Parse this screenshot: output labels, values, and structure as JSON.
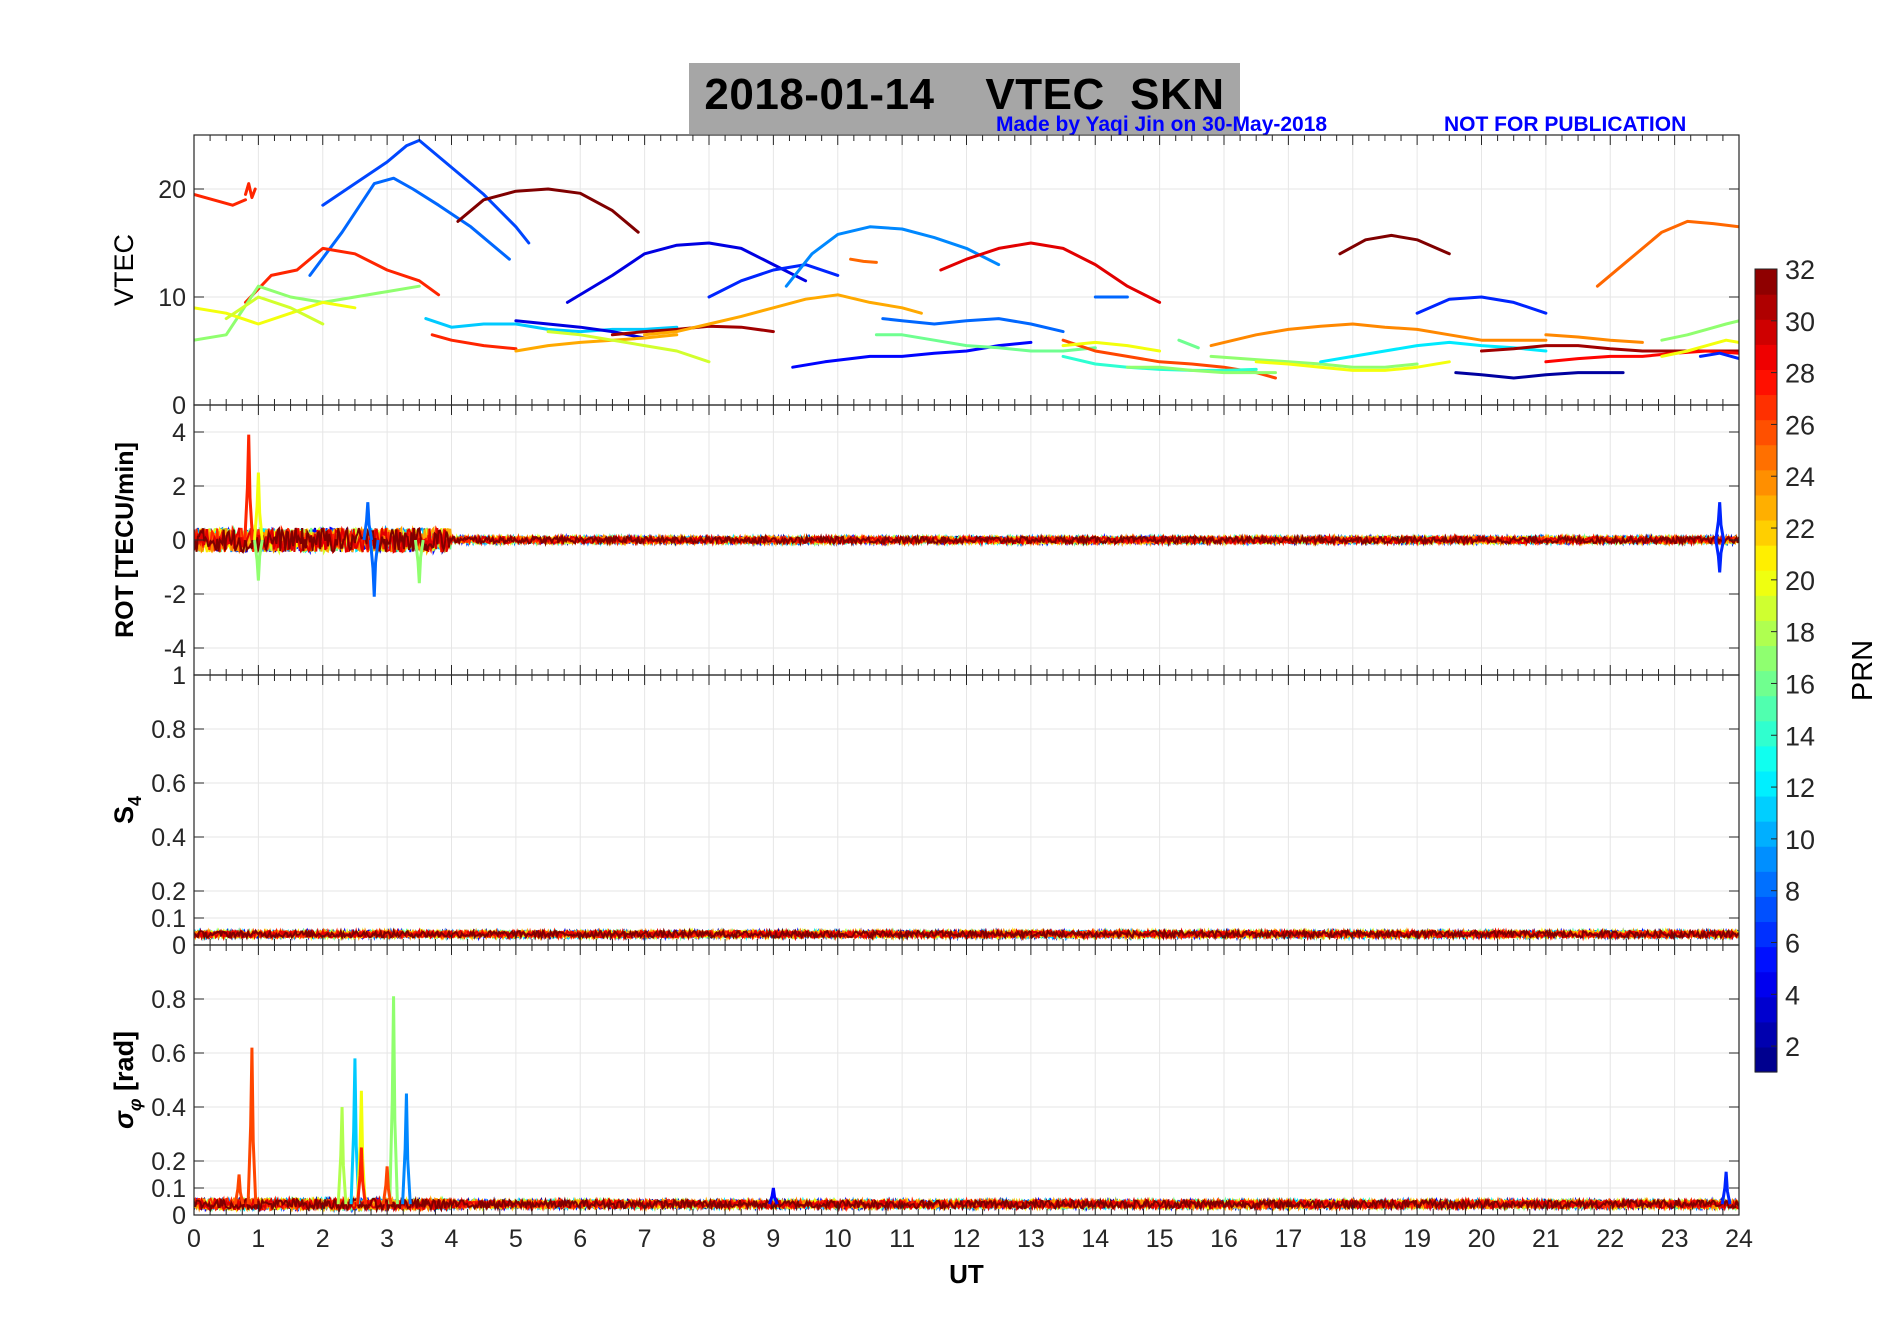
{
  "title": "2018-01-14    VTEC  SKN",
  "credit": {
    "made_by": "Made by Yaqi Jin on 30-May-2018",
    "note": "NOT FOR PUBLICATION"
  },
  "colorbar": {
    "label": "PRN",
    "range": [
      1,
      32
    ],
    "ticks": [
      2,
      4,
      6,
      8,
      10,
      12,
      14,
      16,
      18,
      20,
      22,
      24,
      26,
      28,
      30,
      32
    ],
    "colormap": "jet"
  },
  "chart_data": [
    {
      "type": "line",
      "panel": "vtec",
      "ylabel": "VTEC",
      "xlim": [
        0,
        24
      ],
      "ylim": [
        0,
        25
      ],
      "yticks": [
        0,
        10,
        20
      ],
      "grid": true,
      "series": [
        {
          "prn": 27,
          "x": [
            0,
            0.3,
            0.6,
            0.8
          ],
          "y": [
            19.5,
            19,
            18.5,
            19
          ]
        },
        {
          "prn": 27,
          "x": [
            0.8,
            0.85,
            0.9,
            0.95
          ],
          "y": [
            19.5,
            20.5,
            19.2,
            20
          ]
        },
        {
          "prn": 7,
          "x": [
            2.0,
            2.5,
            3.0,
            3.3,
            3.5,
            4.0,
            4.5,
            5.0,
            5.2
          ],
          "y": [
            18.5,
            20.5,
            22.5,
            24,
            24.5,
            22,
            19.5,
            16.5,
            15
          ]
        },
        {
          "prn": 8,
          "x": [
            1.8,
            2.3,
            2.8,
            3.1,
            3.4,
            3.8,
            4.3,
            4.9
          ],
          "y": [
            12,
            16,
            20.5,
            21,
            20,
            18.5,
            16.5,
            13.5
          ]
        },
        {
          "prn": 32,
          "x": [
            4.1,
            4.5,
            5.0,
            5.5,
            6.0,
            6.5,
            6.9
          ],
          "y": [
            17,
            19,
            19.8,
            20,
            19.6,
            18,
            16
          ]
        },
        {
          "prn": 27,
          "x": [
            0.8,
            1.2,
            1.6,
            2.0,
            2.5,
            3.0,
            3.5,
            3.8
          ],
          "y": [
            9.5,
            12,
            12.5,
            14.5,
            14,
            12.5,
            11.5,
            10.2
          ]
        },
        {
          "prn": 17,
          "x": [
            0,
            0.5,
            1.0,
            1.5,
            2.0,
            2.5,
            3.0,
            3.5
          ],
          "y": [
            6,
            6.5,
            11,
            10,
            9.5,
            10,
            10.5,
            11
          ]
        },
        {
          "prn": 20,
          "x": [
            0,
            0.5,
            1.0,
            1.5,
            2.0,
            2.5
          ],
          "y": [
            9,
            8.5,
            7.5,
            8.5,
            9.5,
            9
          ]
        },
        {
          "prn": 19,
          "x": [
            0.5,
            1.0,
            1.5,
            2.0
          ],
          "y": [
            8,
            10,
            9,
            7.5
          ]
        },
        {
          "prn": 27,
          "x": [
            3.7,
            4.0,
            4.5,
            5.0
          ],
          "y": [
            6.5,
            6,
            5.5,
            5.2
          ]
        },
        {
          "prn": 11,
          "x": [
            3.6,
            4.0,
            4.5,
            5.0,
            5.5,
            6.0,
            6.5,
            7.0,
            7.5
          ],
          "y": [
            8,
            7.2,
            7.5,
            7.5,
            7,
            6.8,
            7,
            7,
            7.2
          ]
        },
        {
          "prn": 4,
          "x": [
            5.0,
            5.5,
            6.0,
            6.5,
            7.0
          ],
          "y": [
            7.8,
            7.5,
            7.2,
            6.8,
            6.2
          ]
        },
        {
          "prn": 23,
          "x": [
            5.0,
            5.5,
            6.0,
            6.5,
            7.0,
            7.5
          ],
          "y": [
            5,
            5.5,
            5.8,
            6,
            6.2,
            6.5
          ]
        },
        {
          "prn": 19,
          "x": [
            5.5,
            6.0,
            6.5,
            7.0,
            7.5,
            8.0
          ],
          "y": [
            6.8,
            6.5,
            6,
            5.5,
            5,
            4
          ]
        },
        {
          "prn": 31,
          "x": [
            6.5,
            7.0,
            7.5,
            8.0,
            8.5,
            9.0
          ],
          "y": [
            6.5,
            6.8,
            7,
            7.3,
            7.2,
            6.8
          ]
        },
        {
          "prn": 4,
          "x": [
            5.8,
            6.5,
            7.0,
            7.5,
            8.0,
            8.5,
            9.0,
            9.5
          ],
          "y": [
            9.5,
            12,
            14,
            14.8,
            15,
            14.5,
            13,
            11.5
          ]
        },
        {
          "prn": 6,
          "x": [
            8.0,
            8.5,
            9.0,
            9.5,
            10.0
          ],
          "y": [
            10,
            11.5,
            12.5,
            13,
            12
          ]
        },
        {
          "prn": 9,
          "x": [
            9.2,
            9.6,
            10.0,
            10.5,
            11.0,
            11.5,
            12.0,
            12.5
          ],
          "y": [
            11,
            14,
            15.8,
            16.5,
            16.3,
            15.5,
            14.5,
            13
          ]
        },
        {
          "prn": 25,
          "x": [
            10.2,
            10.4,
            10.6
          ],
          "y": [
            13.5,
            13.3,
            13.2
          ]
        },
        {
          "prn": 29,
          "x": [
            11.6,
            12.0,
            12.5,
            13.0,
            13.5,
            14.0,
            14.5,
            15.0
          ],
          "y": [
            12.5,
            13.5,
            14.5,
            15,
            14.5,
            13,
            11,
            9.5
          ]
        },
        {
          "prn": 23,
          "x": [
            7.0,
            7.5,
            8.0,
            8.5,
            9.0,
            9.5,
            10.0,
            10.5,
            11.0,
            11.3
          ],
          "y": [
            6.5,
            6.8,
            7.5,
            8.2,
            9,
            9.8,
            10.2,
            9.5,
            9,
            8.5
          ]
        },
        {
          "prn": 8,
          "x": [
            10.7,
            11.0,
            11.5,
            12.0,
            12.5,
            13.0,
            13.5
          ],
          "y": [
            8,
            7.8,
            7.5,
            7.8,
            8,
            7.5,
            6.8
          ]
        },
        {
          "prn": 5,
          "x": [
            9.3,
            9.8,
            10.5,
            11.0,
            11.5,
            12.0,
            12.5,
            13.0
          ],
          "y": [
            3.5,
            4,
            4.5,
            4.5,
            4.8,
            5,
            5.5,
            5.8
          ]
        },
        {
          "prn": 16,
          "x": [
            10.6,
            11.0,
            11.5,
            12.0,
            12.5,
            13.0,
            13.5,
            14.0
          ],
          "y": [
            6.5,
            6.5,
            6,
            5.5,
            5.3,
            5,
            5,
            5.3
          ]
        },
        {
          "prn": 8,
          "x": [
            14.0,
            14.3,
            14.5
          ],
          "y": [
            10,
            10,
            10
          ]
        },
        {
          "prn": 26,
          "x": [
            13.5,
            14.0,
            14.5,
            15.0,
            15.5,
            16.0,
            16.5,
            16.8
          ],
          "y": [
            6,
            5,
            4.5,
            4,
            3.8,
            3.5,
            3,
            2.5
          ]
        },
        {
          "prn": 20,
          "x": [
            13.5,
            14.0,
            14.5,
            15.0
          ],
          "y": [
            5.5,
            5.8,
            5.5,
            5
          ]
        },
        {
          "prn": 14,
          "x": [
            13.5,
            14.0,
            14.5,
            15.0,
            15.5,
            16.0,
            16.5
          ],
          "y": [
            4.5,
            3.8,
            3.5,
            3.3,
            3.2,
            3.2,
            3.3
          ]
        },
        {
          "prn": 17,
          "x": [
            14.5,
            15.0,
            15.5,
            16.0,
            16.5,
            16.8
          ],
          "y": [
            3.5,
            3.5,
            3.2,
            3,
            3,
            3
          ]
        },
        {
          "prn": 16,
          "x": [
            15.3,
            15.6
          ],
          "y": [
            6,
            5.3
          ]
        },
        {
          "prn": 24,
          "x": [
            15.8,
            16.5,
            17.0,
            17.5,
            18.0,
            18.5,
            19.0,
            19.5,
            20.0,
            20.5,
            21.0
          ],
          "y": [
            5.5,
            6.5,
            7,
            7.3,
            7.5,
            7.2,
            7,
            6.5,
            6,
            6,
            6
          ]
        },
        {
          "prn": 17,
          "x": [
            15.8,
            16.5,
            17.0,
            17.5,
            18.0,
            18.5,
            19.0
          ],
          "y": [
            4.5,
            4.2,
            4,
            3.8,
            3.5,
            3.5,
            3.8
          ]
        },
        {
          "prn": 20,
          "x": [
            16.5,
            17.0,
            17.5,
            18.0,
            18.5,
            19.0,
            19.5
          ],
          "y": [
            4,
            3.8,
            3.5,
            3.2,
            3.2,
            3.5,
            4
          ]
        },
        {
          "prn": 12,
          "x": [
            17.5,
            18.0,
            18.5,
            19.0,
            19.5,
            20.0,
            20.5,
            21.0
          ],
          "y": [
            4,
            4.5,
            5,
            5.5,
            5.8,
            5.5,
            5.3,
            5
          ]
        },
        {
          "prn": 32,
          "x": [
            17.8,
            18.2,
            18.6,
            19.0,
            19.5
          ],
          "y": [
            14,
            15.3,
            15.7,
            15.3,
            14
          ]
        },
        {
          "prn": 6,
          "x": [
            19.0,
            19.5,
            20.0,
            20.5,
            21.0
          ],
          "y": [
            8.5,
            9.8,
            10,
            9.5,
            8.5
          ]
        },
        {
          "prn": 2,
          "x": [
            19.6,
            20.0,
            20.5,
            21.0,
            21.5,
            22.0,
            22.2
          ],
          "y": [
            3,
            2.8,
            2.5,
            2.8,
            3,
            3,
            3
          ]
        },
        {
          "prn": 31,
          "x": [
            20.0,
            20.5,
            21.0,
            21.5,
            22.0,
            22.5,
            23.0,
            23.5,
            24.0
          ],
          "y": [
            5,
            5.2,
            5.5,
            5.5,
            5.2,
            5,
            5,
            5,
            5
          ]
        },
        {
          "prn": 28,
          "x": [
            21.0,
            21.5,
            22.0,
            22.5,
            23.0,
            23.5,
            24.0
          ],
          "y": [
            4,
            4.3,
            4.5,
            4.5,
            4.8,
            5,
            4.8
          ]
        },
        {
          "prn": 24,
          "x": [
            21.0,
            21.5,
            22.0,
            22.5
          ],
          "y": [
            6.5,
            6.3,
            6,
            5.8
          ]
        },
        {
          "prn": 25,
          "x": [
            21.8,
            22.3,
            22.8,
            23.2,
            23.6,
            24.0
          ],
          "y": [
            11,
            13.5,
            16,
            17,
            16.8,
            16.5
          ]
        },
        {
          "prn": 17,
          "x": [
            22.8,
            23.2,
            23.5,
            23.8,
            24.0
          ],
          "y": [
            6,
            6.5,
            7,
            7.5,
            7.8
          ]
        },
        {
          "prn": 20,
          "x": [
            22.8,
            23.2,
            23.5,
            23.8,
            24.0
          ],
          "y": [
            4.5,
            5,
            5.5,
            6,
            5.8
          ]
        },
        {
          "prn": 6,
          "x": [
            23.4,
            23.7,
            24.0
          ],
          "y": [
            4.5,
            4.8,
            4.3
          ]
        }
      ]
    },
    {
      "type": "line",
      "panel": "rot",
      "ylabel": "ROT [TECU/min]",
      "xlim": [
        0,
        24
      ],
      "ylim": [
        -5,
        5
      ],
      "yticks": [
        -4,
        -2,
        0,
        2,
        4
      ],
      "grid": true,
      "peaks": [
        {
          "prn": 27,
          "x": 0.85,
          "y": 3.9
        },
        {
          "prn": 20,
          "x": 1.0,
          "y": 2.5
        },
        {
          "prn": 17,
          "x": 1.0,
          "y": -1.5
        },
        {
          "prn": 8,
          "x": 2.8,
          "y": -2.1
        },
        {
          "prn": 8,
          "x": 2.7,
          "y": 1.4
        },
        {
          "prn": 17,
          "x": 3.5,
          "y": -1.6
        },
        {
          "prn": 6,
          "x": 23.7,
          "y": 1.4
        },
        {
          "prn": 6,
          "x": 23.7,
          "y": -1.2
        }
      ]
    },
    {
      "type": "line",
      "panel": "s4",
      "ylabel": "S4",
      "xlim": [
        0,
        24
      ],
      "ylim": [
        0,
        1
      ],
      "yticks": [
        0,
        0.1,
        0.2,
        0.4,
        0.6,
        0.8,
        1
      ],
      "grid": true,
      "baseline": 0.04
    },
    {
      "type": "line",
      "panel": "sigma_phi",
      "ylabel": "σφ [rad]",
      "xlabel": "UT",
      "xlim": [
        0,
        24
      ],
      "ylim": [
        0,
        1
      ],
      "xticks": [
        0,
        1,
        2,
        3,
        4,
        5,
        6,
        7,
        8,
        9,
        10,
        11,
        12,
        13,
        14,
        15,
        16,
        17,
        18,
        19,
        20,
        21,
        22,
        23,
        24
      ],
      "yticks": [
        0,
        0.1,
        0.2,
        0.4,
        0.6,
        0.8
      ],
      "grid": true,
      "peaks": [
        {
          "prn": 26,
          "x": 0.9,
          "y": 0.62
        },
        {
          "prn": 26,
          "x": 0.7,
          "y": 0.15
        },
        {
          "prn": 11,
          "x": 2.5,
          "y": 0.58
        },
        {
          "prn": 20,
          "x": 2.6,
          "y": 0.46
        },
        {
          "prn": 18,
          "x": 2.3,
          "y": 0.4
        },
        {
          "prn": 27,
          "x": 2.6,
          "y": 0.25
        },
        {
          "prn": 17,
          "x": 3.1,
          "y": 0.81
        },
        {
          "prn": 9,
          "x": 3.3,
          "y": 0.45
        },
        {
          "prn": 26,
          "x": 3.0,
          "y": 0.18
        },
        {
          "prn": 5,
          "x": 9.0,
          "y": 0.1
        },
        {
          "prn": 6,
          "x": 23.8,
          "y": 0.16
        }
      ],
      "baseline": 0.04
    }
  ]
}
